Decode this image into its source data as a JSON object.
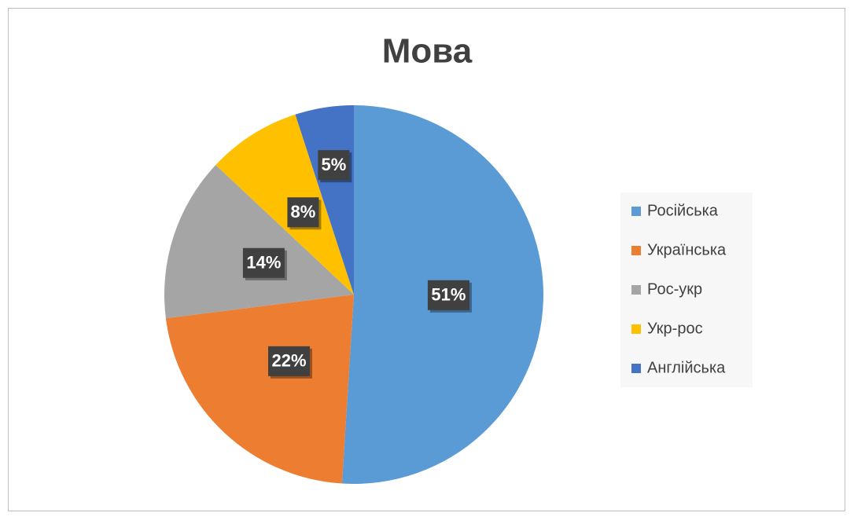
{
  "chart_data": {
    "type": "pie",
    "title": "Мова",
    "categories": [
      "Російська",
      "Українська",
      "Рос-укр",
      "Укр-рос",
      "Англійська"
    ],
    "values": [
      51,
      22,
      14,
      8,
      5
    ],
    "value_labels": [
      "51%",
      "22%",
      "14%",
      "8%",
      "5%"
    ],
    "colors": [
      "#5b9bd5",
      "#ed7d31",
      "#a5a5a5",
      "#ffc000",
      "#4472c4"
    ],
    "legend": "right"
  }
}
